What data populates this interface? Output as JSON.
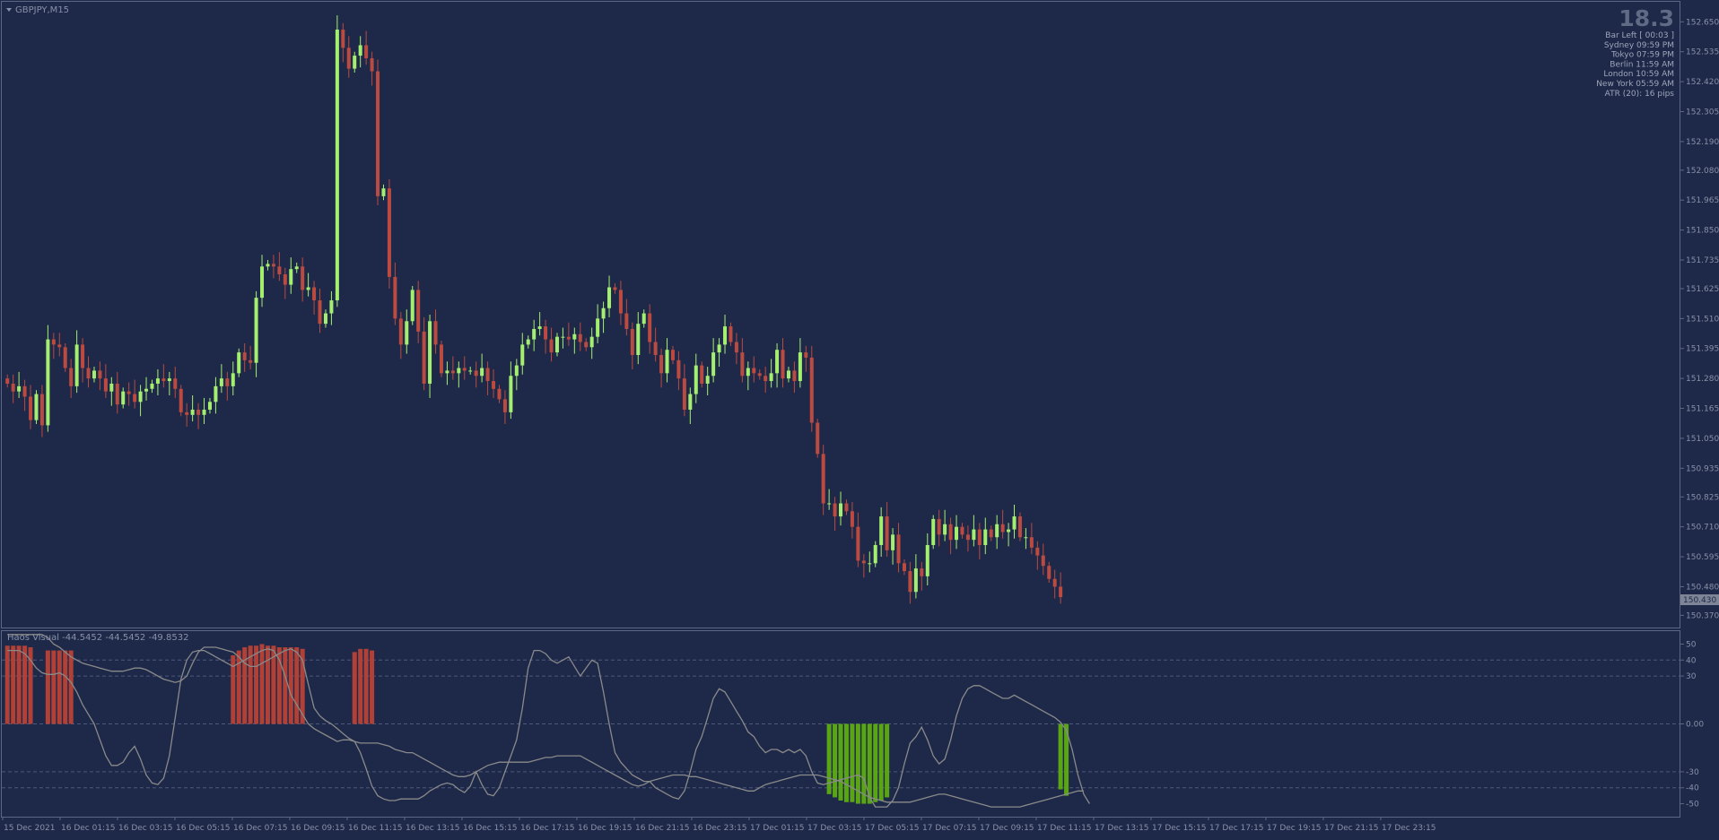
{
  "symbol": "GBPJPY,M15",
  "indicator_label": "Haos Visual -44.5452 -44.5452 -49.8532",
  "countdown": "18.3",
  "info_lines": [
    "Bar Left   [ 00:03 ]",
    "Sydney   09:59 PM",
    "Tokyo   07:59 PM",
    "Berlin   11:59 AM",
    "London   10:59 AM",
    "New York   05:59 AM",
    "ATR (20): 16 pips"
  ],
  "current_price": "150.430",
  "colors": {
    "background": "#1e2949",
    "bull": "#a5ef70",
    "bear": "#bb4a40",
    "hist_bear": "#b14136",
    "hist_bull": "#5aa514",
    "line": "#8a8a8a",
    "text": "#8891a7",
    "info_text": "#9ea6b9"
  },
  "chart_data": [
    {
      "type": "candlestick",
      "title": "GBPJPY,M15",
      "ylim": [
        150.33,
        152.72
      ],
      "y_ticks": [
        "152.650",
        "152.535",
        "152.420",
        "152.305",
        "152.190",
        "152.080",
        "151.965",
        "151.850",
        "151.735",
        "151.625",
        "151.510",
        "151.395",
        "151.280",
        "151.165",
        "151.050",
        "150.935",
        "150.825",
        "150.710",
        "150.595",
        "150.480",
        "150.370"
      ],
      "x_ticks": [
        "15 Dec 2021",
        "16 Dec 01:15",
        "16 Dec 03:15",
        "16 Dec 05:15",
        "16 Dec 07:15",
        "16 Dec 09:15",
        "16 Dec 11:15",
        "16 Dec 13:15",
        "16 Dec 15:15",
        "16 Dec 17:15",
        "16 Dec 19:15",
        "16 Dec 21:15",
        "16 Dec 23:15",
        "17 Dec 01:15",
        "17 Dec 03:15",
        "17 Dec 05:15",
        "17 Dec 07:15",
        "17 Dec 09:15",
        "17 Dec 11:15",
        "17 Dec 13:15",
        "17 Dec 15:15",
        "17 Dec 17:15",
        "17 Dec 19:15",
        "17 Dec 21:15",
        "17 Dec 23:15"
      ],
      "series": [
        {
          "values": [
            151.26,
            151.23,
            151.25,
            151.21,
            151.12,
            151.22,
            151.1,
            151.43,
            151.41,
            151.4,
            151.32,
            151.25,
            151.41,
            151.32,
            151.28,
            151.31,
            151.28,
            151.23,
            151.26,
            151.18,
            151.23,
            151.22,
            151.19,
            151.23,
            151.24,
            151.26,
            151.28,
            151.27,
            151.28,
            151.24,
            151.15,
            151.14,
            151.16,
            151.14,
            151.16,
            151.19,
            151.25,
            151.28,
            151.25,
            151.3,
            151.38,
            151.35,
            151.34,
            151.59,
            151.71,
            151.72,
            151.71,
            151.68,
            151.64,
            151.7,
            151.71,
            151.62,
            151.63,
            151.58,
            151.49,
            151.53,
            151.58,
            152.62,
            152.55,
            152.47,
            152.52,
            152.56,
            152.51,
            152.46,
            151.98,
            152.01,
            151.67,
            151.51,
            151.41,
            151.5,
            151.62,
            151.46,
            151.26,
            151.5,
            151.41,
            151.3,
            151.31,
            151.3,
            151.32,
            151.31,
            151.31,
            151.29,
            151.32,
            151.27,
            151.24,
            151.2,
            151.15,
            151.29,
            151.33,
            151.41,
            151.43,
            151.47,
            151.48,
            151.43,
            151.38,
            151.44,
            151.44,
            151.43,
            151.45,
            151.42,
            151.4,
            151.44,
            151.51,
            151.55,
            151.63,
            151.62,
            151.53,
            151.47,
            151.37,
            151.49,
            151.53,
            151.42,
            151.37,
            151.3,
            151.39,
            151.35,
            151.28,
            151.16,
            151.22,
            151.33,
            151.26,
            151.29,
            151.38,
            151.41,
            151.48,
            151.42,
            151.38,
            151.29,
            151.32,
            151.3,
            151.29,
            151.27,
            151.3,
            151.39,
            151.28,
            151.31,
            151.27,
            151.38,
            151.36,
            151.11,
            150.99,
            150.8,
            150.8,
            150.75,
            150.8,
            150.77,
            150.71,
            150.58,
            150.57,
            150.57,
            150.64,
            150.75,
            150.62,
            150.68,
            150.57,
            150.54,
            150.46,
            150.55,
            150.52,
            150.64,
            150.74,
            150.68,
            150.72,
            150.66,
            150.71,
            150.68,
            150.66,
            150.7,
            150.64,
            150.7,
            150.67,
            150.72,
            150.69,
            150.7,
            150.75,
            150.67,
            150.67,
            150.63,
            150.6,
            150.56,
            150.51,
            150.48,
            150.44
          ]
        }
      ]
    },
    {
      "type": "bar",
      "title": "Haos Visual -44.5452 -44.5452 -49.8532",
      "ylim": [
        -57,
        57
      ],
      "y_ticks": [
        "50",
        "40",
        "30",
        "0.00",
        "-30",
        "-40",
        "-50"
      ],
      "series": [
        {
          "values": [
            49,
            49,
            49,
            49,
            48,
            0,
            0,
            46,
            46,
            46,
            46,
            46,
            0,
            0,
            0,
            0,
            0,
            0,
            0,
            0,
            0,
            0,
            0,
            0,
            0,
            0,
            0,
            0,
            0,
            0,
            0,
            0,
            0,
            0,
            0,
            0,
            0,
            0,
            0,
            43,
            46,
            48,
            49,
            49,
            50,
            49,
            49,
            48,
            48,
            48,
            48,
            47,
            0,
            0,
            0,
            0,
            0,
            0,
            0,
            0,
            45,
            47,
            47,
            46,
            0,
            0,
            0,
            0,
            0,
            0,
            0,
            0,
            0,
            0,
            0,
            0,
            0,
            0,
            0,
            0,
            0,
            0,
            0,
            0,
            0,
            0,
            0,
            0,
            0,
            0,
            0,
            0,
            0,
            0,
            0,
            0,
            0,
            0,
            0,
            0,
            0,
            0,
            0,
            0,
            0,
            0,
            0,
            0,
            0,
            0,
            0,
            0,
            0,
            0,
            0,
            0,
            0,
            0,
            0,
            0,
            0,
            0,
            0,
            0,
            0,
            0,
            0,
            0,
            0,
            0,
            0,
            0,
            0,
            0,
            0,
            0,
            0,
            0,
            0,
            0,
            0,
            0,
            -44,
            -46,
            -48,
            -49,
            -49,
            -50,
            -50,
            -50,
            -49,
            -48,
            -46,
            0,
            0,
            0,
            0,
            0,
            0,
            0,
            0,
            0,
            0,
            0,
            0,
            0,
            0,
            0,
            0,
            0,
            0,
            0,
            0,
            0,
            0,
            0,
            0,
            0,
            0,
            0,
            0,
            0,
            -41,
            -45
          ]
        },
        {
          "values": [
            46,
            46,
            46,
            44,
            40,
            35,
            32,
            31,
            31,
            32,
            30,
            26,
            20,
            12,
            6,
            0,
            -10,
            -20,
            -26,
            -26,
            -24,
            -18,
            -14,
            -22,
            -32,
            -37,
            -38,
            -34,
            -20,
            4,
            28,
            40,
            45,
            46,
            46,
            44,
            42,
            40,
            38,
            36,
            38,
            40,
            42,
            44,
            46,
            47,
            46,
            40,
            30,
            18,
            12,
            6,
            0,
            -3,
            -5,
            -7,
            -9,
            -11,
            -10,
            -10,
            -11,
            -18,
            -28,
            -39,
            -45,
            -47,
            -48,
            -48,
            -47,
            -47,
            -47,
            -47,
            -45,
            -42,
            -40,
            -38,
            -37,
            -38,
            -41,
            -43,
            -39,
            -30,
            -38,
            -44,
            -45,
            -40,
            -30,
            -20,
            -10,
            10,
            35,
            46,
            46,
            44,
            40,
            38,
            40,
            42,
            36,
            30,
            35,
            40,
            38,
            20,
            0,
            -18,
            -24,
            -28,
            -32,
            -34,
            -36,
            -36,
            -40,
            -42,
            -44,
            -46,
            -47,
            -42,
            -30,
            -16,
            -8,
            4,
            16,
            22,
            20,
            14,
            8,
            2,
            -5,
            -8,
            -14,
            -18,
            -16,
            -16,
            -18,
            -16,
            -18,
            -16,
            -20,
            -30,
            -37,
            -38,
            -37,
            -36,
            -35,
            -34,
            -33,
            -32,
            -34,
            -46,
            -52,
            -52,
            -52,
            -48,
            -40,
            -25,
            -12,
            -8,
            -2,
            -10,
            -20,
            -25,
            -22,
            -10,
            5,
            16,
            22,
            24,
            24,
            22,
            20,
            18,
            16,
            16,
            18,
            16,
            14,
            12,
            10,
            8,
            6,
            4,
            1,
            -4,
            -16,
            -32,
            -44,
            -50
          ]
        },
        {
          "values": [
            56,
            56,
            56,
            56,
            56,
            56,
            56,
            54,
            50,
            48,
            45,
            42,
            40,
            38,
            37,
            36,
            35,
            34,
            33,
            33,
            33,
            34,
            35,
            35,
            34,
            32,
            30,
            28,
            27,
            26,
            27,
            30,
            38,
            45,
            48,
            48,
            48,
            47,
            46,
            45,
            42,
            38,
            36,
            36,
            38,
            40,
            42,
            44,
            46,
            47,
            45,
            40,
            25,
            10,
            5,
            2,
            0,
            -3,
            -6,
            -9,
            -11,
            -12,
            -12,
            -12,
            -12,
            -13,
            -14,
            -16,
            -17,
            -18,
            -18,
            -20,
            -22,
            -24,
            -26,
            -28,
            -30,
            -32,
            -33,
            -33,
            -32,
            -30,
            -28,
            -26,
            -25,
            -24,
            -24,
            -24,
            -24,
            -24,
            -24,
            -23,
            -22,
            -21,
            -21,
            -20,
            -20,
            -20,
            -20,
            -20,
            -22,
            -24,
            -26,
            -28,
            -30,
            -32,
            -34,
            -36,
            -38,
            -39,
            -38,
            -36,
            -35,
            -34,
            -33,
            -32,
            -32,
            -32,
            -33,
            -33,
            -34,
            -35,
            -36,
            -37,
            -38,
            -39,
            -40,
            -41,
            -42,
            -42,
            -40,
            -38,
            -37,
            -36,
            -35,
            -34,
            -33,
            -32,
            -32,
            -32,
            -32,
            -33,
            -34,
            -35,
            -36,
            -38,
            -40,
            -42,
            -44,
            -46,
            -47,
            -48,
            -49,
            -49,
            -49,
            -49,
            -49,
            -48,
            -47,
            -46,
            -45,
            -44,
            -44,
            -45,
            -46,
            -47,
            -48,
            -49,
            -50,
            -51,
            -52,
            -52,
            -52,
            -52,
            -52,
            -52,
            -51,
            -50,
            -49,
            -48,
            -47,
            -46,
            -45,
            -44,
            -43,
            -42,
            -42
          ]
        }
      ]
    }
  ]
}
